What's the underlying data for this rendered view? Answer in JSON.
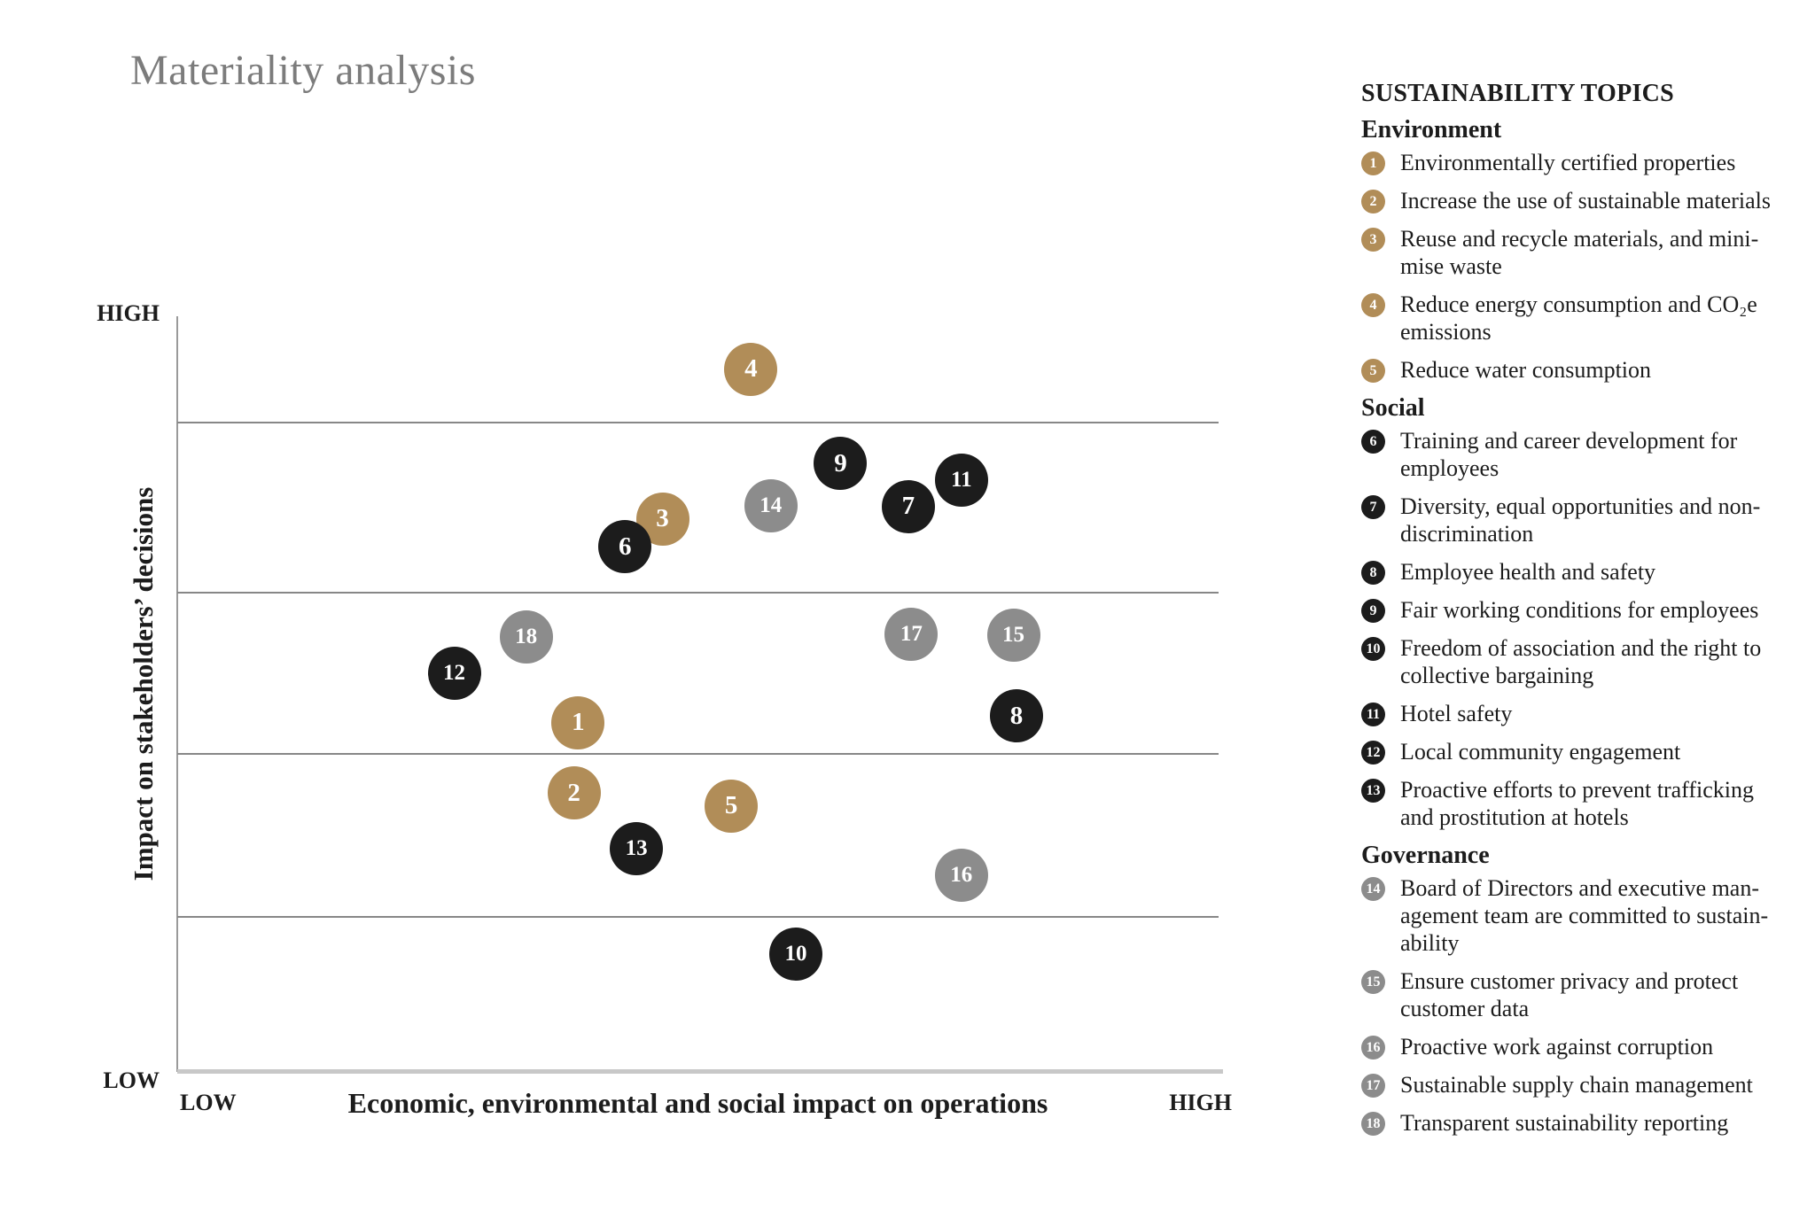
{
  "title": "Materiality analysis",
  "colors": {
    "environment": "#b18d58",
    "social": "#1c1c1c",
    "governance": "#8c8c8c",
    "title_gray": "#7c7c7c",
    "gridline": "#878787",
    "axis_line": "#9a9a9a",
    "axis_baseline": "#c8c8c8"
  },
  "chart_data": {
    "type": "scatter",
    "title": "Materiality analysis",
    "xlabel": "Economic, environmental and social impact on operations",
    "ylabel": "Impact on stakeholders’ decisions",
    "x_axis": {
      "min_label": "LOW",
      "max_label": "HIGH",
      "range": [
        0,
        100
      ]
    },
    "y_axis": {
      "min_label": "LOW",
      "max_label": "HIGH",
      "range": [
        0,
        100
      ]
    },
    "grid": {
      "horizontal_lines_y": [
        86.0,
        63.5,
        42.2,
        20.6
      ]
    },
    "legend_position": "right",
    "points": [
      {
        "id": 1,
        "category": "environment",
        "x": 38.5,
        "y": 46.2,
        "label": "Environmentally certified properties"
      },
      {
        "id": 2,
        "category": "environment",
        "x": 38.1,
        "y": 36.9,
        "label": "Increase the use of sustainable materials"
      },
      {
        "id": 3,
        "category": "environment",
        "x": 46.6,
        "y": 73.2,
        "label": "Reuse and recycle materials, and minimise waste"
      },
      {
        "id": 4,
        "category": "environment",
        "x": 55.1,
        "y": 93.0,
        "label": "Reduce energy consumption and CO₂e emissions"
      },
      {
        "id": 5,
        "category": "environment",
        "x": 53.2,
        "y": 35.2,
        "label": "Reduce water consumption"
      },
      {
        "id": 6,
        "category": "social",
        "x": 43.0,
        "y": 69.5,
        "label": "Training and career development for employees"
      },
      {
        "id": 7,
        "category": "social",
        "x": 70.2,
        "y": 74.8,
        "label": "Diversity, equal opportunities and non-discrimination"
      },
      {
        "id": 8,
        "category": "social",
        "x": 80.6,
        "y": 47.1,
        "label": "Employee health and safety"
      },
      {
        "id": 9,
        "category": "social",
        "x": 63.7,
        "y": 80.5,
        "label": "Fair working conditions for employees"
      },
      {
        "id": 10,
        "category": "social",
        "x": 59.4,
        "y": 15.6,
        "label": "Freedom of association and the right to collective bargaining"
      },
      {
        "id": 11,
        "category": "social",
        "x": 75.3,
        "y": 78.3,
        "label": "Hotel safety"
      },
      {
        "id": 12,
        "category": "social",
        "x": 26.6,
        "y": 52.8,
        "label": "Local community engagement"
      },
      {
        "id": 13,
        "category": "social",
        "x": 44.1,
        "y": 29.5,
        "label": "Proactive efforts to prevent trafficking and prostitution at hotels"
      },
      {
        "id": 14,
        "category": "governance",
        "x": 57.0,
        "y": 74.9,
        "label": "Board of Directors and executive management team are committed to sustainability"
      },
      {
        "id": 15,
        "category": "governance",
        "x": 80.3,
        "y": 57.8,
        "label": "Ensure customer privacy and protect customer data"
      },
      {
        "id": 16,
        "category": "governance",
        "x": 75.3,
        "y": 26.0,
        "label": "Proactive work against corruption"
      },
      {
        "id": 17,
        "category": "governance",
        "x": 70.5,
        "y": 57.9,
        "label": "Sustainable supply chain management"
      },
      {
        "id": 18,
        "category": "governance",
        "x": 33.5,
        "y": 57.6,
        "label": "Transparent sustainability reporting"
      }
    ]
  },
  "legend": {
    "header": "SUSTAINABILITY TOPICS",
    "groups": [
      {
        "key": "environment",
        "name": "Environment",
        "items": [
          {
            "id": 1,
            "label": "Environmentally certified properties"
          },
          {
            "id": 2,
            "label": "Increase the use of sustainable materials"
          },
          {
            "id": 3,
            "label": "Reuse and recycle materials, and mini-\nmise waste"
          },
          {
            "id": 4,
            "label": "Reduce energy consumption and CO₂e\nemissions"
          },
          {
            "id": 5,
            "label": "Reduce water consumption"
          }
        ]
      },
      {
        "key": "social",
        "name": "Social",
        "items": [
          {
            "id": 6,
            "label": "Training and career development for\nemployees"
          },
          {
            "id": 7,
            "label": "Diversity, equal opportunities and non-\ndiscrimination"
          },
          {
            "id": 8,
            "label": "Employee health and safety"
          },
          {
            "id": 9,
            "label": "Fair working conditions for employees"
          },
          {
            "id": 10,
            "label": "Freedom of association and the right to\ncollective bargaining"
          },
          {
            "id": 11,
            "label": "Hotel safety"
          },
          {
            "id": 12,
            "label": "Local community engagement"
          },
          {
            "id": 13,
            "label": "Proactive efforts to prevent trafficking\nand prostitution at hotels"
          }
        ]
      },
      {
        "key": "governance",
        "name": "Governance",
        "items": [
          {
            "id": 14,
            "label": "Board of Directors and executive man-\nagement team are committed to sustain-\nability"
          },
          {
            "id": 15,
            "label": "Ensure customer privacy and protect\ncustomer data"
          },
          {
            "id": 16,
            "label": "Proactive work against corruption"
          },
          {
            "id": 17,
            "label": "Sustainable supply chain management"
          },
          {
            "id": 18,
            "label": "Transparent sustainability reporting"
          }
        ]
      }
    ]
  }
}
